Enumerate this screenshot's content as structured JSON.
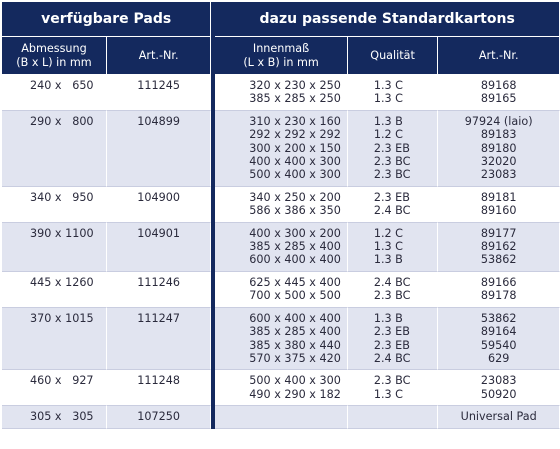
{
  "header": {
    "left_group": "verfügbare Pads",
    "right_group": "dazu passende Standardkartons",
    "col_abmessung": [
      "Abmessung",
      "(B x L) in mm"
    ],
    "col_artnr_left": "Art.-Nr.",
    "col_innenmass": [
      "Innenmaß",
      "(L x B) in mm"
    ],
    "col_qualitaet": "Qualität",
    "col_artnr_right": "Art.-Nr."
  },
  "rows": [
    {
      "dim": "240 x   650",
      "art": "111245",
      "inner": [
        "320 x 230 x 250",
        "385 x 285 x 250"
      ],
      "qual": [
        "1.3 C",
        "1.3 C"
      ],
      "kart": [
        "89168",
        "89165"
      ]
    },
    {
      "dim": "290 x   800",
      "art": "104899",
      "inner": [
        "310 x 230 x 160",
        "292 x 292 x 292",
        "300 x 200 x 150",
        "400 x 400 x 300",
        "500 x 400 x 300"
      ],
      "qual": [
        "1.3 B",
        "1.2 C",
        "2.3 EB",
        "2.3 BC",
        "2.3 BC"
      ],
      "kart": [
        "97924 (laio)",
        "89183",
        "89180",
        "32020",
        "23083"
      ]
    },
    {
      "dim": "340 x   950",
      "art": "104900",
      "inner": [
        "340 x 250 x 200",
        "586 x 386 x 350"
      ],
      "qual": [
        "2.3 EB",
        "2.4 BC"
      ],
      "kart": [
        "89181",
        "89160"
      ]
    },
    {
      "dim": "390 x 1100",
      "art": "104901",
      "inner": [
        "400 x 300 x 200",
        "385 x 285 x 400",
        "600 x 400 x 400"
      ],
      "qual": [
        "1.2 C",
        "1.3 C",
        "1.3 B"
      ],
      "kart": [
        "89177",
        "89162",
        "53862"
      ]
    },
    {
      "dim": "445 x 1260",
      "art": "111246",
      "inner": [
        "625 x 445 x 400",
        "700 x 500 x 500"
      ],
      "qual": [
        "2.4 BC",
        "2.3 BC"
      ],
      "kart": [
        "89166",
        "89178"
      ]
    },
    {
      "dim": "370 x 1015",
      "art": "111247",
      "inner": [
        "600 x 400 x 400",
        "385 x 285 x 400",
        "385 x 380 x 440",
        "570 x 375 x 420"
      ],
      "qual": [
        "1.3 B",
        "2.3 EB",
        "2.3 EB",
        "2.4 BC"
      ],
      "kart": [
        "53862",
        "89164",
        "59540",
        "629"
      ]
    },
    {
      "dim": "460 x   927",
      "art": "111248",
      "inner": [
        "500 x 400 x 300",
        "490 x 290 x 182"
      ],
      "qual": [
        "2.3 BC",
        "1.3 C"
      ],
      "kart": [
        "23083",
        "50920"
      ]
    },
    {
      "dim": "305 x   305",
      "art": "107250",
      "inner": [],
      "qual": [],
      "kart": [
        "Universal Pad"
      ]
    }
  ]
}
